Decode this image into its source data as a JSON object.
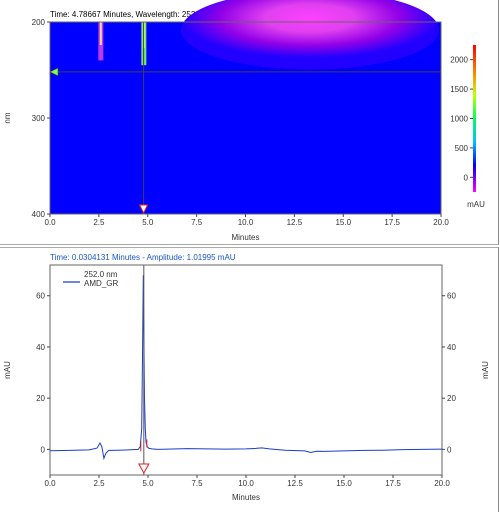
{
  "top_panel": {
    "readout": "Time: 4.78667 Minutes, Wavelength: 252 nm"
  },
  "bottom_panel": {
    "readout": "Time:  0.0304131 Minutes - Amplitude:  1.01995 mAU"
  },
  "chart_data": [
    {
      "type": "heatmap",
      "xlabel": "Minutes",
      "ylabel": "nm",
      "xlim": [
        0,
        20
      ],
      "ylim": [
        200,
        400
      ],
      "x_ticks": [
        "0.0",
        "2.5",
        "5.0",
        "7.5",
        "10.0",
        "12.5",
        "15.0",
        "17.5",
        "20.0"
      ],
      "y_ticks": [
        "200",
        "300",
        "400"
      ],
      "colorbar_label": "mAU",
      "colorbar_ticks": [
        "0",
        "500",
        "1000",
        "1500",
        "2000"
      ],
      "colorbar_range": [
        -250,
        2250
      ],
      "cursor_time": 4.78667,
      "cursor_wavelength": 252,
      "blobs": [
        {
          "time": 2.6,
          "wavelength_from": 200,
          "wavelength_to": 240,
          "color": "#d040e0"
        },
        {
          "time": 4.8,
          "wavelength_from": 200,
          "wavelength_to": 245,
          "color": "#80ff60"
        },
        {
          "time": 13.3,
          "wavelength_from": 200,
          "wavelength_to": 235,
          "color": "#ff40ff"
        }
      ],
      "colors": {
        "background": "#0000ff",
        "hot": "#ff40ff",
        "mid": "#a000f0"
      }
    },
    {
      "type": "line",
      "xlabel": "Minutes",
      "ylabel": "mAU",
      "xlim": [
        0,
        20
      ],
      "ylim": [
        -10,
        72
      ],
      "x_ticks": [
        "0.0",
        "2.5",
        "5.0",
        "7.5",
        "10.0",
        "12.5",
        "15.0",
        "17.5",
        "20.0"
      ],
      "y_ticks": [
        "0",
        "20",
        "40",
        "60"
      ],
      "legend": [
        "252.0 nm",
        "AMD_GR"
      ],
      "marker_time": 4.78667,
      "series": [
        {
          "name": "AMD_GR",
          "color": "#1a3ccc",
          "x": [
            0.0,
            1.0,
            2.0,
            2.4,
            2.55,
            2.65,
            2.75,
            2.85,
            3.0,
            3.5,
            4.0,
            4.5,
            4.6,
            4.68,
            4.72,
            4.76,
            4.79,
            4.82,
            4.86,
            4.9,
            4.96,
            5.05,
            5.2,
            5.5,
            6.0,
            7.0,
            8.0,
            9.0,
            10.0,
            10.5,
            10.8,
            11.2,
            12.0,
            13.0,
            13.3,
            13.6,
            14.0,
            15.0,
            16.0,
            17.0,
            18.0,
            19.0,
            20.0
          ],
          "y": [
            -0.5,
            -0.4,
            -0.2,
            0.5,
            2.5,
            1.0,
            -3.5,
            -1.5,
            -0.4,
            -0.3,
            -0.2,
            0.0,
            1.0,
            8.0,
            36.0,
            68.0,
            42.0,
            20.0,
            8.0,
            3.0,
            1.0,
            0.4,
            0.2,
            0.0,
            0.1,
            0.3,
            0.2,
            0.1,
            0.2,
            0.4,
            0.6,
            0.2,
            -0.3,
            -0.6,
            -1.2,
            -0.7,
            -0.8,
            -0.6,
            -0.4,
            -0.3,
            -0.1,
            0.0,
            0.1
          ]
        }
      ]
    }
  ]
}
